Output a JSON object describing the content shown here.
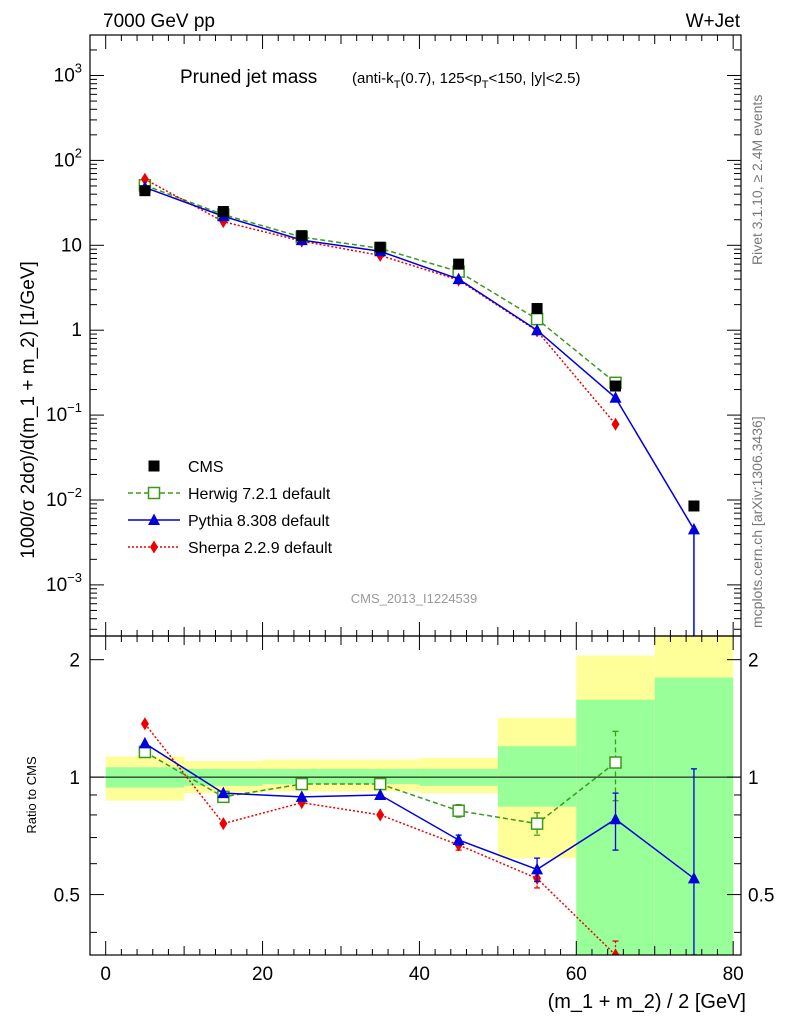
{
  "header": {
    "left": "7000 GeV pp",
    "right": "W+Jet"
  },
  "title": {
    "main": "Pruned jet mass",
    "sub_prefix": "(anti-k",
    "sub_ksub": "T",
    "sub_mid": "(0.7), 125<p",
    "sub_psub": "T",
    "sub_suffix": "<150, |y|<2.5)"
  },
  "watermark": "CMS_2013_I1224539",
  "side_labels": {
    "rivet": "Rivet 3.1.10, ≥ 2.4M events",
    "mcplots": "mcplots.cern.ch [arXiv:1306.3436]"
  },
  "colors": {
    "cms": "#000000",
    "herwig": "#3a9a1a",
    "pythia": "#0000dd",
    "sherpa": "#ee0000",
    "band_outer": "#ffff99",
    "band_inner": "#99ff99"
  },
  "chart_data": [
    {
      "type": "scatter",
      "panel": "main",
      "ylabel": "1000/σ 2dσ)/d(m_1 + m_2) [1/GeV]",
      "yscale": "log",
      "ylim": [
        0.00025,
        3000
      ],
      "xlim": [
        -2,
        81
      ],
      "y_ticks": [
        {
          "value": 0.001,
          "base": "10",
          "exp": "−3"
        },
        {
          "value": 0.01,
          "base": "10",
          "exp": "−2"
        },
        {
          "value": 0.1,
          "base": "10",
          "exp": "−1"
        },
        {
          "value": 1,
          "base": "1",
          "exp": ""
        },
        {
          "value": 10,
          "base": "10",
          "exp": ""
        },
        {
          "value": 100,
          "base": "10",
          "exp": "2"
        },
        {
          "value": 1000,
          "base": "10",
          "exp": "3"
        }
      ],
      "legend_position": "middle-left",
      "series": [
        {
          "key": "cms",
          "name": "CMS",
          "marker": "square-filled",
          "line": "none",
          "x": [
            5,
            15,
            25,
            35,
            45,
            55,
            65,
            75
          ],
          "y": [
            44,
            25,
            13,
            9.5,
            6,
            1.8,
            0.22,
            0.0085
          ]
        },
        {
          "key": "herwig",
          "name": "Herwig 7.2.1 default",
          "marker": "square-open",
          "line": "dashed",
          "x": [
            5,
            15,
            25,
            35,
            45,
            55,
            65
          ],
          "y": [
            51,
            23,
            12.5,
            9.2,
            4.9,
            1.35,
            0.24
          ]
        },
        {
          "key": "pythia",
          "name": "Pythia 8.308 default",
          "marker": "triangle",
          "line": "solid",
          "x": [
            5,
            15,
            25,
            35,
            45,
            55,
            65,
            75
          ],
          "y": [
            48,
            22,
            11.5,
            8.5,
            4.0,
            1.0,
            0.16,
            0.0045
          ],
          "yerr_low": [
            0,
            0,
            0,
            0,
            0,
            0,
            0,
            0.0044
          ]
        },
        {
          "key": "sherpa",
          "name": "Sherpa 2.2.9 default",
          "marker": "diamond",
          "line": "dotted",
          "x": [
            5,
            15,
            25,
            35,
            45,
            55,
            65
          ],
          "y": [
            60,
            19,
            11.2,
            7.6,
            3.9,
            0.98,
            0.078
          ]
        }
      ]
    },
    {
      "type": "scatter",
      "panel": "ratio",
      "xlabel": "(m_1 + m_2) / 2 [GeV]",
      "ylabel": "Ratio to CMS",
      "ylim": [
        0.35,
        2.3
      ],
      "xlim": [
        -2,
        81
      ],
      "x_ticks": [
        0,
        20,
        40,
        60,
        80
      ],
      "y_ticks": [
        0.5,
        1,
        2
      ],
      "bands": [
        {
          "x0": 0,
          "x1": 10,
          "inner": [
            0.94,
            1.06
          ],
          "outer": [
            0.87,
            1.13
          ]
        },
        {
          "x0": 10,
          "x1": 20,
          "inner": [
            0.95,
            1.05
          ],
          "outer": [
            0.91,
            1.1
          ]
        },
        {
          "x0": 20,
          "x1": 30,
          "inner": [
            0.96,
            1.05
          ],
          "outer": [
            0.92,
            1.11
          ]
        },
        {
          "x0": 30,
          "x1": 40,
          "inner": [
            0.96,
            1.05
          ],
          "outer": [
            0.92,
            1.11
          ]
        },
        {
          "x0": 40,
          "x1": 50,
          "inner": [
            0.95,
            1.05
          ],
          "outer": [
            0.91,
            1.12
          ]
        },
        {
          "x0": 50,
          "x1": 60,
          "inner": [
            0.84,
            1.2
          ],
          "outer": [
            0.62,
            1.42
          ]
        },
        {
          "x0": 60,
          "x1": 70,
          "inner": [
            0.35,
            1.58
          ],
          "outer": [
            0.35,
            2.05
          ]
        },
        {
          "x0": 70,
          "x1": 80,
          "inner": [
            0.35,
            1.8
          ],
          "outer": [
            0.35,
            2.3
          ]
        }
      ],
      "series": [
        {
          "key": "herwig",
          "x": [
            5,
            15,
            25,
            35,
            45,
            55,
            65
          ],
          "y": [
            1.16,
            0.89,
            0.96,
            0.96,
            0.82,
            0.76,
            1.09
          ],
          "err": [
            0,
            0,
            0,
            0,
            0.03,
            0.05,
            0.22
          ]
        },
        {
          "key": "pythia",
          "x": [
            5,
            15,
            25,
            35,
            45,
            55,
            65,
            75
          ],
          "y": [
            1.22,
            0.91,
            0.89,
            0.9,
            0.69,
            0.58,
            0.78,
            0.55
          ],
          "err": [
            0,
            0,
            0,
            0,
            0.02,
            0.04,
            0.13,
            0.5
          ]
        },
        {
          "key": "sherpa",
          "x": [
            5,
            15,
            25,
            35,
            45,
            55,
            65
          ],
          "y": [
            1.37,
            0.76,
            0.86,
            0.8,
            0.67,
            0.55,
            0.33
          ],
          "err": [
            0,
            0,
            0,
            0,
            0.02,
            0.03,
            0.05
          ]
        }
      ]
    }
  ]
}
